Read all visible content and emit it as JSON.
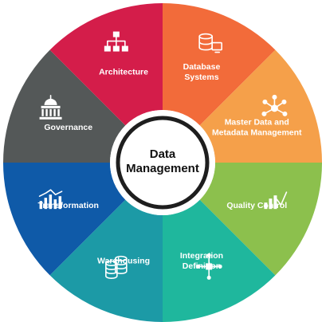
{
  "center": {
    "line1": "Data",
    "line2": "Management"
  },
  "segments": [
    {
      "id": "database-systems",
      "lines": [
        "Database",
        "Systems"
      ],
      "color": "#f26b3a",
      "icon": "database-monitor-icon"
    },
    {
      "id": "master-data",
      "lines": [
        "Master Data and",
        "Metadata Management"
      ],
      "color": "#f5a04a",
      "icon": "network-hub-icon"
    },
    {
      "id": "quality-control",
      "lines": [
        "Quality Control"
      ],
      "color": "#8cc04d",
      "icon": "bar-chart-check-icon"
    },
    {
      "id": "integration-definition",
      "lines": [
        "Integration",
        "Definition"
      ],
      "color": "#1fb79d",
      "icon": "integration-nodes-icon"
    },
    {
      "id": "warehousing",
      "lines": [
        "Warehousing"
      ],
      "color": "#1c9aa6",
      "icon": "database-stack-icon"
    },
    {
      "id": "transformation",
      "lines": [
        "Transformation"
      ],
      "color": "#0f5aa8",
      "icon": "trend-bars-icon"
    },
    {
      "id": "governance",
      "lines": [
        "Governance"
      ],
      "color": "#545858",
      "icon": "capitol-building-icon"
    },
    {
      "id": "architecture",
      "lines": [
        "Architecture"
      ],
      "color": "#d41d4a",
      "icon": "hierarchy-icon"
    }
  ]
}
